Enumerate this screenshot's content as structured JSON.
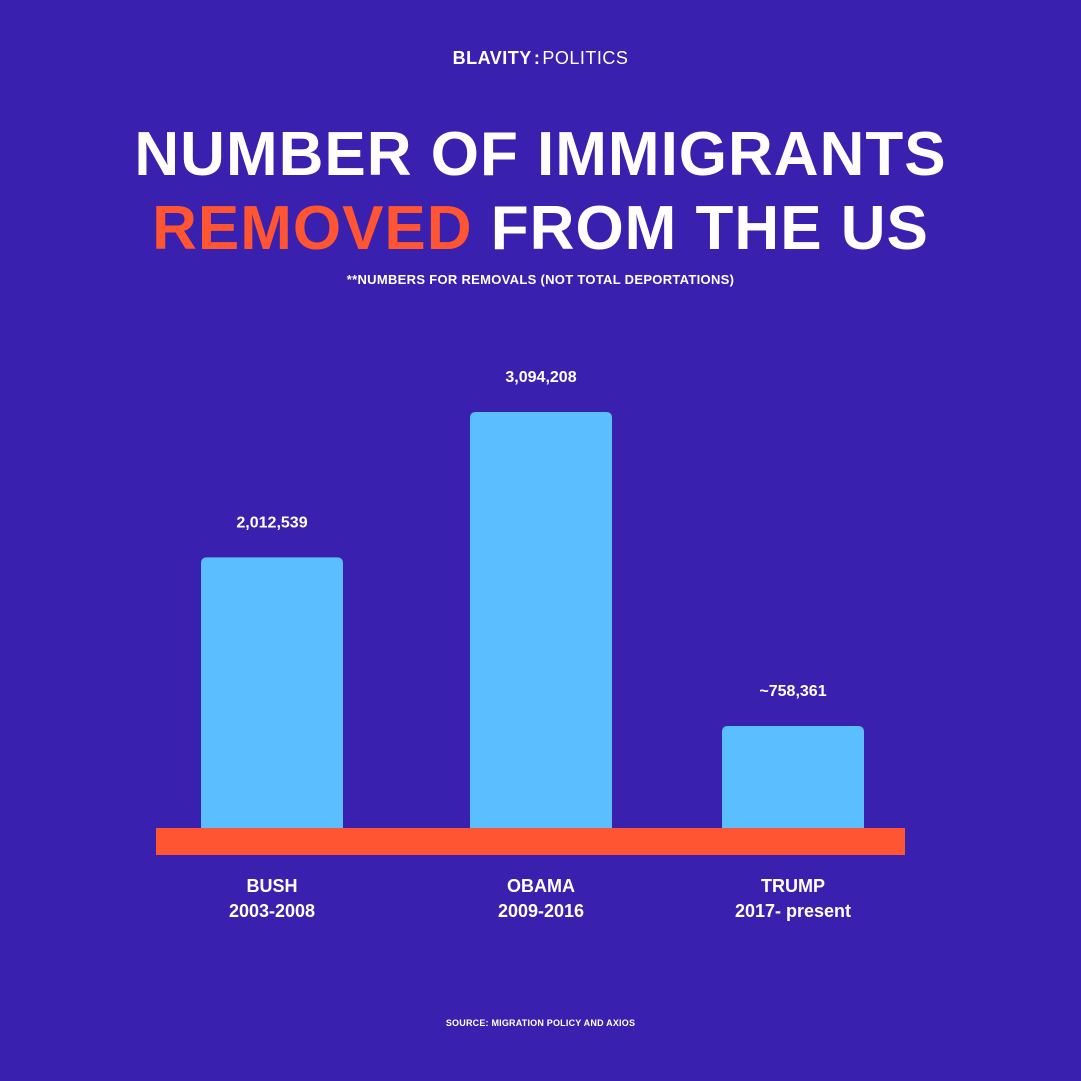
{
  "brand": {
    "name": "BLAVITY",
    "separator": ":",
    "section": "POLITICS"
  },
  "title": {
    "line1": "NUMBER OF IMMIGRANTS",
    "line2_accent": "REMOVED",
    "line2_rest": "FROM THE US"
  },
  "subtitle": "**NUMBERS FOR REMOVALS (NOT TOTAL DEPORTATIONS)",
  "source": "SOURCE: MIGRATION POLICY AND AXIOS",
  "colors": {
    "background": "#3a20ae",
    "bar": "#5bbfff",
    "baseline": "#ff5533",
    "accent": "#ff5533",
    "text": "#ffffff"
  },
  "chart_data": {
    "type": "bar",
    "categories": [
      {
        "name": "BUSH",
        "period": "2003-2008"
      },
      {
        "name": "OBAMA",
        "period": "2009-2016"
      },
      {
        "name": "TRUMP",
        "period": "2017- present"
      }
    ],
    "values": [
      2012539,
      3094208,
      758361
    ],
    "value_labels": [
      "2,012,539",
      "3,094,208",
      "~758,361"
    ],
    "title": "NUMBER OF IMMIGRANTS REMOVED FROM THE US",
    "xlabel": "",
    "ylabel": "",
    "grid": false,
    "legend": "none"
  }
}
